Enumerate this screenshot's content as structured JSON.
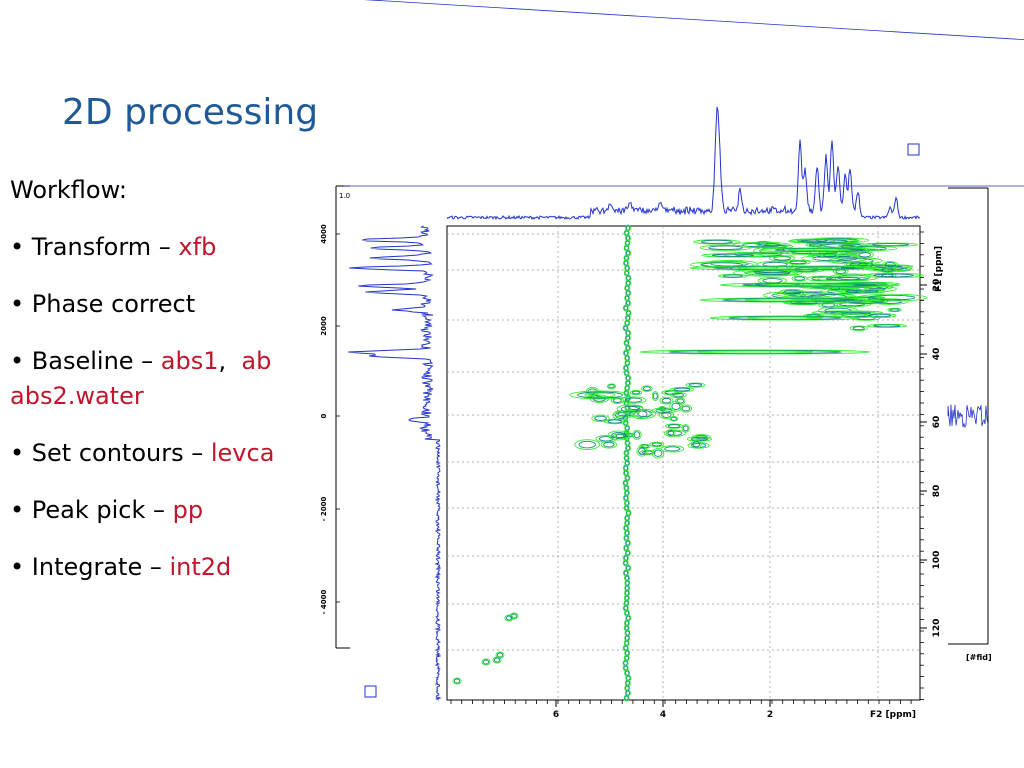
{
  "slide": {
    "title": "2D processing",
    "workflow_label": "Workflow:",
    "bullets": [
      {
        "text": "• Transform – ",
        "command": "xfb"
      },
      {
        "text": "• Phase correct",
        "command": ""
      },
      {
        "text": "• Baseline – ",
        "command": "abs1",
        "separator": ",  ",
        "command2": "ab",
        "cont": "abs2.water"
      },
      {
        "text": "• Set contours – ",
        "command": "levca"
      },
      {
        "text": "• Peak pick – ",
        "command": "pp"
      },
      {
        "text": "• Integrate – ",
        "command": "int2d"
      }
    ]
  },
  "spectrum": {
    "x_axis": {
      "label": "F2 [ppm]",
      "ticks": [
        "6",
        "4",
        "2"
      ]
    },
    "y_axis": {
      "label": "F1 [ppm]",
      "ticks": [
        "20",
        "40",
        "60",
        "80",
        "100",
        "120"
      ]
    },
    "fid_axis": {
      "ticks": [
        "4000",
        "2000",
        "0",
        "- 2000",
        "- 4000"
      ],
      "corner_label": "1.0"
    },
    "fid_right_label": "[#fid]",
    "colors": {
      "axis": "#000000",
      "trace": "#2233cc",
      "contour_light": "#33ee33",
      "contour_dark": "#1a8a80",
      "grid": "#888888"
    }
  }
}
